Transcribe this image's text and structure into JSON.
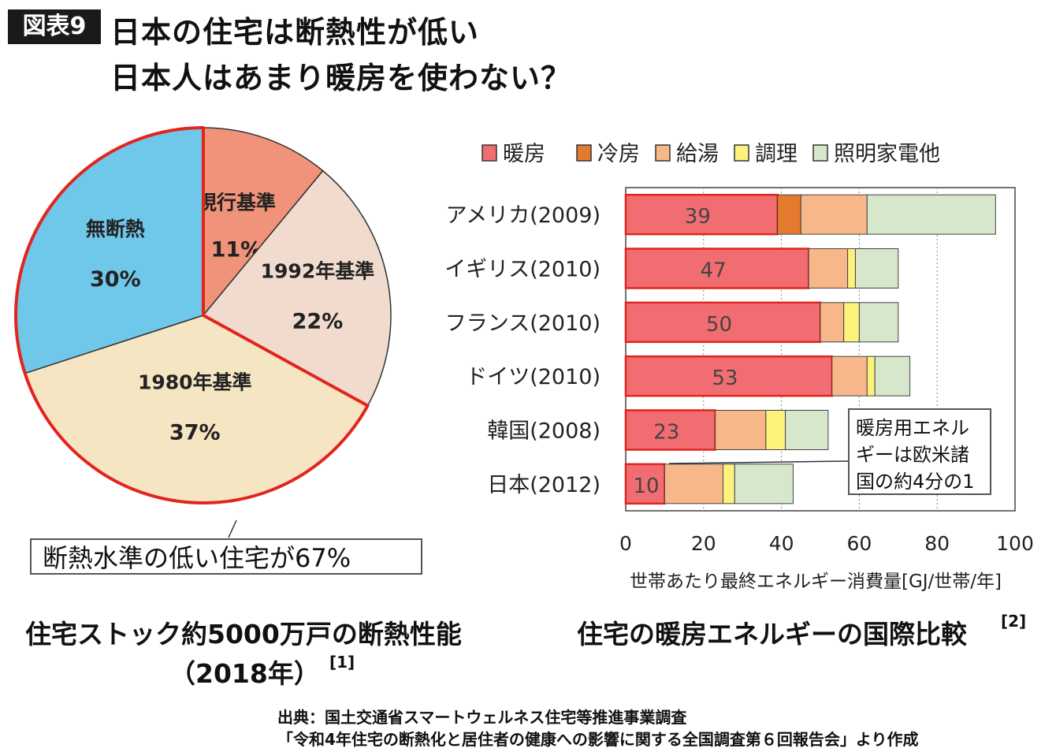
{
  "figure_badge": "図表9",
  "title": {
    "line1": "日本の住宅は断熱性が低い",
    "line2": "日本人はあまり暖房を使わない？"
  },
  "chart_data": [
    {
      "type": "pie",
      "slices": [
        {
          "label": "現行基準",
          "value": 11,
          "value_label": "11%",
          "color": "#f0937a"
        },
        {
          "label": "1992年基準",
          "value": 22,
          "value_label": "22%",
          "color": "#f1dbcf"
        },
        {
          "label": "1980年基準",
          "value": 37,
          "value_label": "37%",
          "color": "#f5e5c3"
        },
        {
          "label": "無断熱",
          "value": 30,
          "value_label": "30%",
          "color": "#6fc7ea"
        }
      ],
      "callout": "断熱水準の低い住宅が67%",
      "caption_line1": "住宅ストック約5000万戸の断熱性能",
      "caption_line2": "（2018年）",
      "caption_ref": "[1]"
    },
    {
      "type": "bar",
      "orientation": "horizontal",
      "stacked": true,
      "categories": [
        "アメリカ(2009)",
        "イギリス(2010)",
        "フランス(2010)",
        "ドイツ(2010)",
        "韓国(2008)",
        "日本(2012)"
      ],
      "series": [
        {
          "name": "暖房",
          "color": "#f26d72",
          "values": [
            39,
            47,
            50,
            53,
            23,
            10
          ]
        },
        {
          "name": "冷房",
          "color": "#e47a2e",
          "values": [
            6,
            0,
            0,
            0,
            0,
            0
          ]
        },
        {
          "name": "給湯",
          "color": "#f8b789",
          "values": [
            17,
            10,
            6,
            9,
            13,
            15
          ]
        },
        {
          "name": "調理",
          "color": "#fcf27c",
          "values": [
            0,
            2,
            4,
            2,
            5,
            3
          ]
        },
        {
          "name": "照明家電他",
          "color": "#d6e7cc",
          "values": [
            33,
            11,
            10,
            9,
            11,
            15
          ]
        }
      ],
      "data_labels": [
        "39",
        "47",
        "50",
        "53",
        "23",
        "10"
      ],
      "xlim": [
        0,
        100
      ],
      "xticks": [
        "0",
        "20",
        "40",
        "60",
        "80",
        "100"
      ],
      "xlabel": "世帯あたり最終エネルギー消費量[GJ/世帯/年]",
      "legend_position": "top",
      "grid": "vertical-dotted",
      "note_lines": [
        "暖房用エネル",
        "ギーは欧米諸",
        "国の約4分の1"
      ],
      "caption": "住宅の暖房エネルギーの国際比較",
      "caption_ref": "[2]"
    }
  ],
  "source": {
    "line1": "出典：国土交通省スマートウェルネス住宅等推進事業調査",
    "line2": "「令和4年住宅の断熱化と居住者の健康への影響に関する全国調査第６回報告会」より作成"
  }
}
